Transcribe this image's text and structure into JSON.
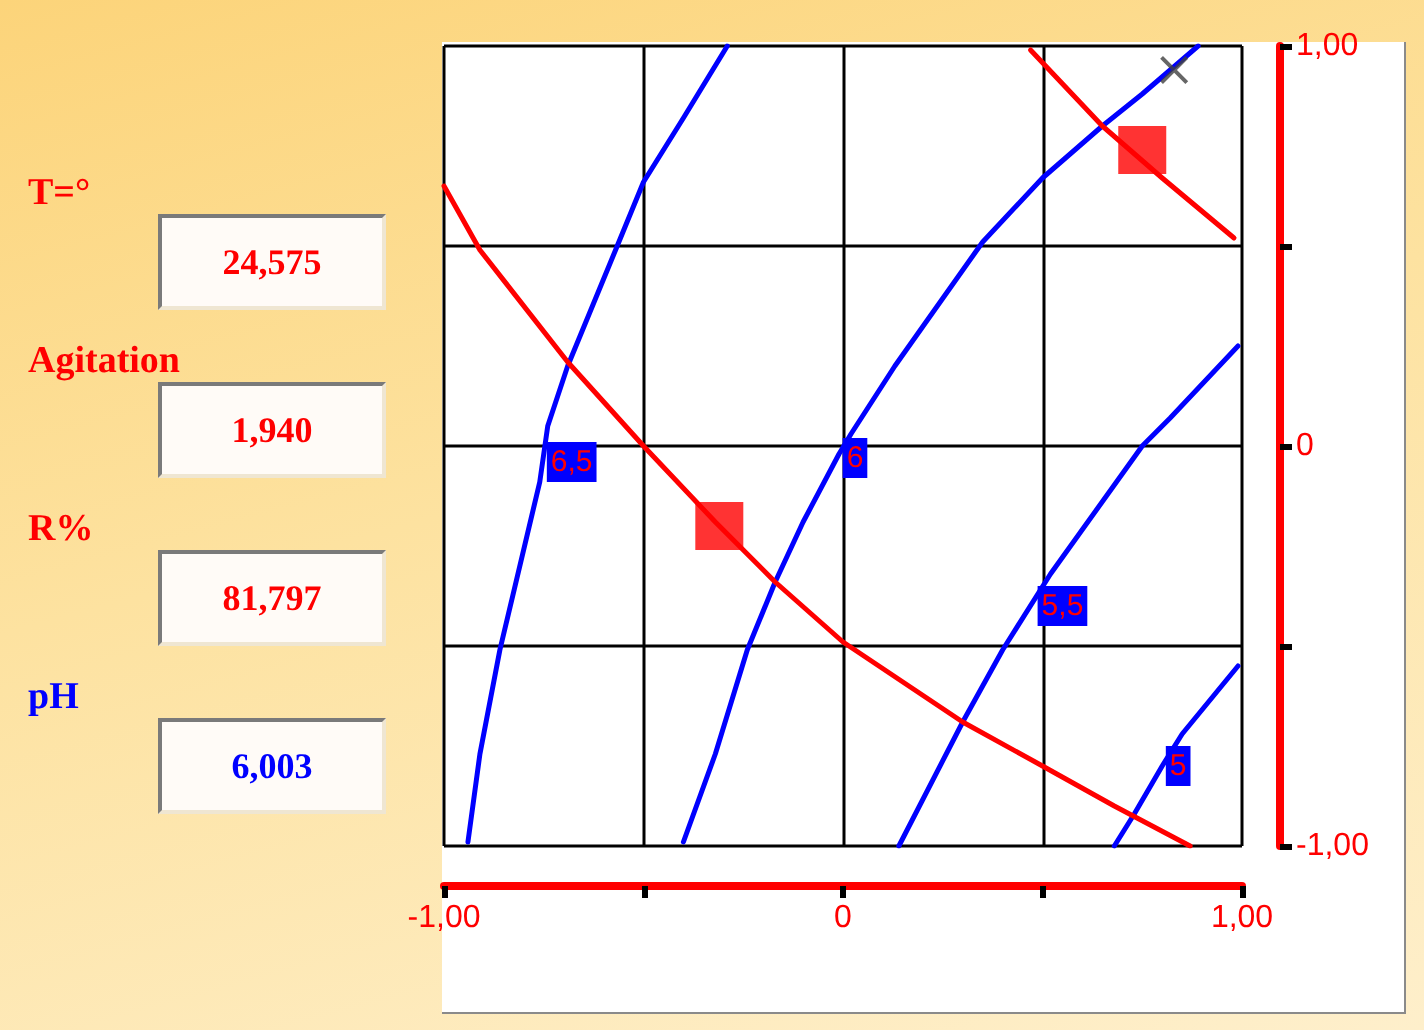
{
  "chart_data": {
    "type": "line",
    "xlim": [
      -1,
      1
    ],
    "xticks": [
      {
        "value": -1,
        "label": "-1,00"
      },
      {
        "value": -0.5,
        "label": null
      },
      0,
      {
        "value": 0.5,
        "label": null
      },
      {
        "value": 1,
        "label": "1,00"
      }
    ],
    "ylim": [
      -1,
      1
    ],
    "yticks": [
      {
        "value": -1,
        "label": "-1,00"
      },
      {
        "value": -0.5,
        "label": null
      },
      0,
      {
        "value": 0.5,
        "label": null
      },
      {
        "value": 1,
        "label": "1,00"
      }
    ],
    "grid": true,
    "series": [
      {
        "color": "#0000ff",
        "marker": "none",
        "x": [
          -0.94,
          -0.91,
          -0.86,
          -0.76,
          -0.74,
          -0.69,
          -0.57,
          -0.5,
          -0.4,
          -0.29
        ],
        "values": [
          -0.99,
          -0.77,
          -0.51,
          -0.09,
          0.05,
          0.2,
          0.49,
          0.66,
          0.82,
          1.0
        ]
      },
      {
        "color": "#0000ff",
        "marker": "none",
        "x": [
          -0.4,
          -0.32,
          -0.24,
          -0.17,
          -0.1,
          -0.01,
          0.02,
          0.13,
          0.35,
          0.5,
          0.65,
          0.75,
          0.89
        ],
        "values": [
          -0.99,
          -0.77,
          -0.51,
          -0.34,
          -0.19,
          -0.02,
          0.03,
          0.2,
          0.51,
          0.67,
          0.8,
          0.88,
          1.0
        ]
      },
      {
        "color": "#0000ff",
        "marker": "none",
        "x": [
          0.14,
          0.3,
          0.4,
          0.52,
          0.75,
          0.82,
          0.99
        ],
        "values": [
          -1.0,
          -0.69,
          -0.51,
          -0.32,
          0.0,
          0.07,
          0.25
        ]
      },
      {
        "color": "#0000ff",
        "marker": "none",
        "x": [
          0.68,
          0.73,
          0.8,
          0.85,
          0.99
        ],
        "values": [
          -1.0,
          -0.92,
          -0.8,
          -0.72,
          -0.55
        ]
      },
      {
        "color": "#ff0000",
        "marker": "none",
        "x": [
          -1.0,
          -0.91,
          -0.69,
          -0.5,
          -0.32,
          -0.17,
          0.0,
          0.3,
          0.5,
          0.68,
          0.87
        ],
        "values": [
          0.65,
          0.49,
          0.21,
          0.0,
          -0.19,
          -0.34,
          -0.49,
          -0.69,
          -0.8,
          -0.9,
          -1.0
        ]
      },
      {
        "color": "#ff0000",
        "marker": "none",
        "x": [
          0.47,
          0.65,
          0.8,
          0.98
        ],
        "values": [
          0.99,
          0.8,
          0.67,
          0.52
        ]
      },
      {
        "type": "scatter",
        "color": "#ff0000",
        "marker": "square",
        "x": [
          -0.31,
          0.75
        ],
        "values": [
          -0.2,
          0.74
        ]
      },
      {
        "type": "scatter",
        "color": "#404040",
        "marker": "cross",
        "x": [
          0.83
        ],
        "values": [
          0.94
        ]
      }
    ],
    "annotations": [
      "T=°",
      "24,575",
      "Agitation",
      "1,940",
      "R%",
      "81,797",
      "pH",
      "6,003",
      {
        "text": "6,5",
        "x": -0.68,
        "y": -0.04
      },
      {
        "text": "6",
        "x": 0.03,
        "y": -0.03
      },
      {
        "text": "5,5",
        "x": 0.55,
        "y": -0.4
      },
      {
        "text": "5",
        "x": 0.84,
        "y": -0.8
      }
    ]
  }
}
